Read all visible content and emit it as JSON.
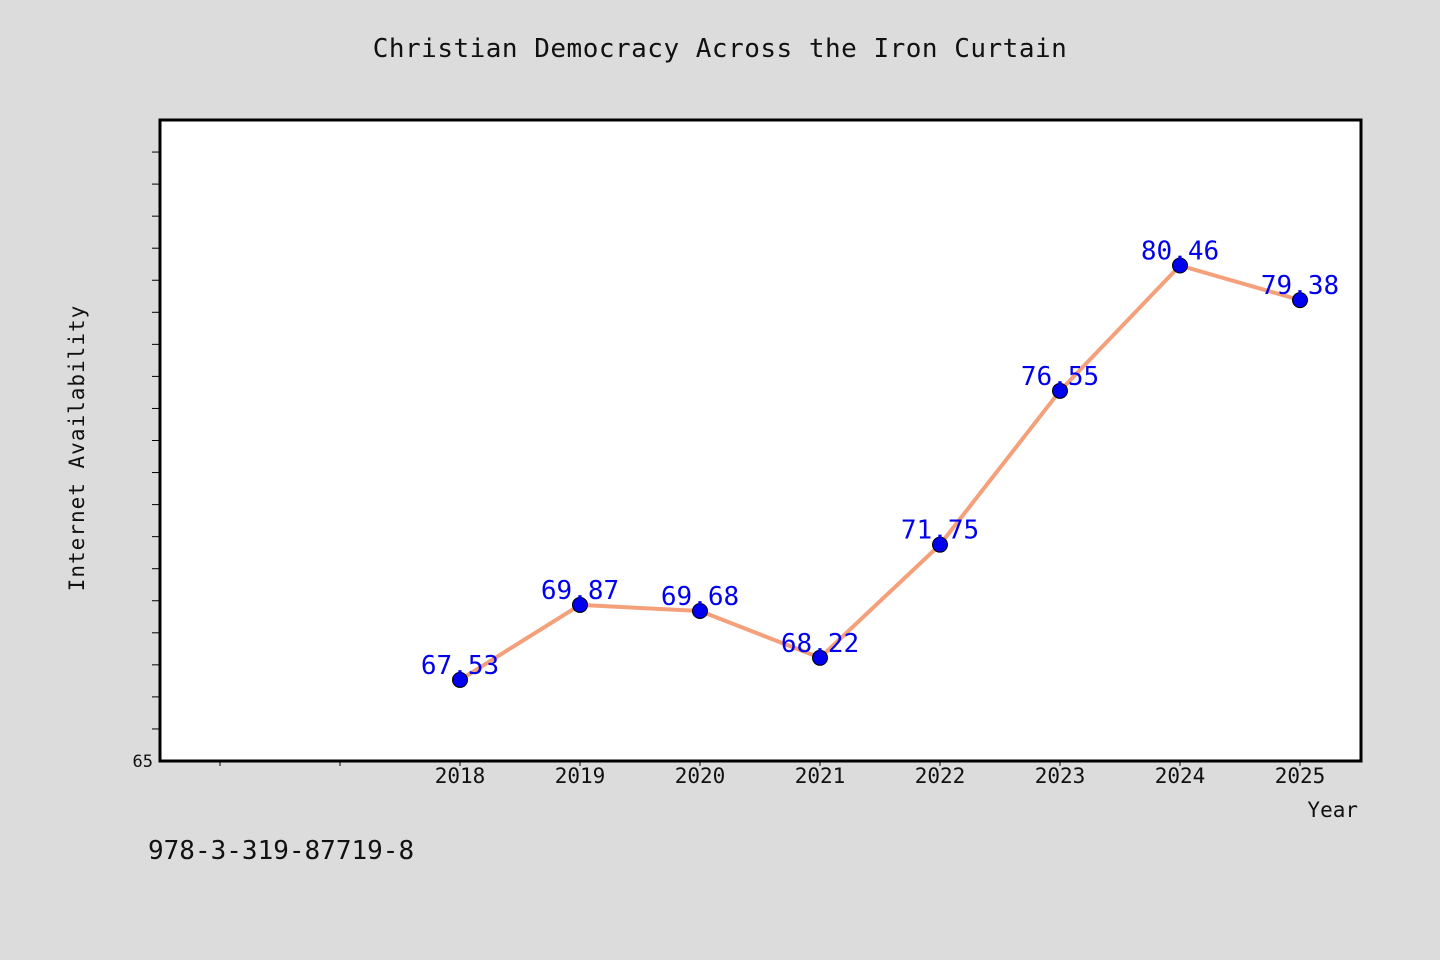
{
  "chart_data": {
    "type": "line",
    "title": "Christian Democracy Across the Iron Curtain",
    "xlabel": "Year",
    "ylabel": "Internet Availability",
    "categories": [
      "2018",
      "2019",
      "2020",
      "2021",
      "2022",
      "2023",
      "2024",
      "2025"
    ],
    "series": [
      {
        "values": [
          67.53,
          69.87,
          69.68,
          68.22,
          71.75,
          76.55,
          80.46,
          79.38
        ],
        "data_labels": [
          "67.53",
          "69.87",
          "69.68",
          "68.22",
          "71.75",
          "76.55",
          "80.46",
          "79.38"
        ]
      }
    ],
    "ylim": [
      65,
      85
    ],
    "ytick_labels": [
      "65"
    ],
    "grid": false,
    "legend": "none",
    "colors": {
      "line": "#f4a07a",
      "marker": "#0000ee",
      "data_label": "#0000ee",
      "background": "#dcdcdc",
      "plot_background": "#ffffff"
    }
  },
  "footer": {
    "identifier": "978-3-319-87719-8"
  }
}
